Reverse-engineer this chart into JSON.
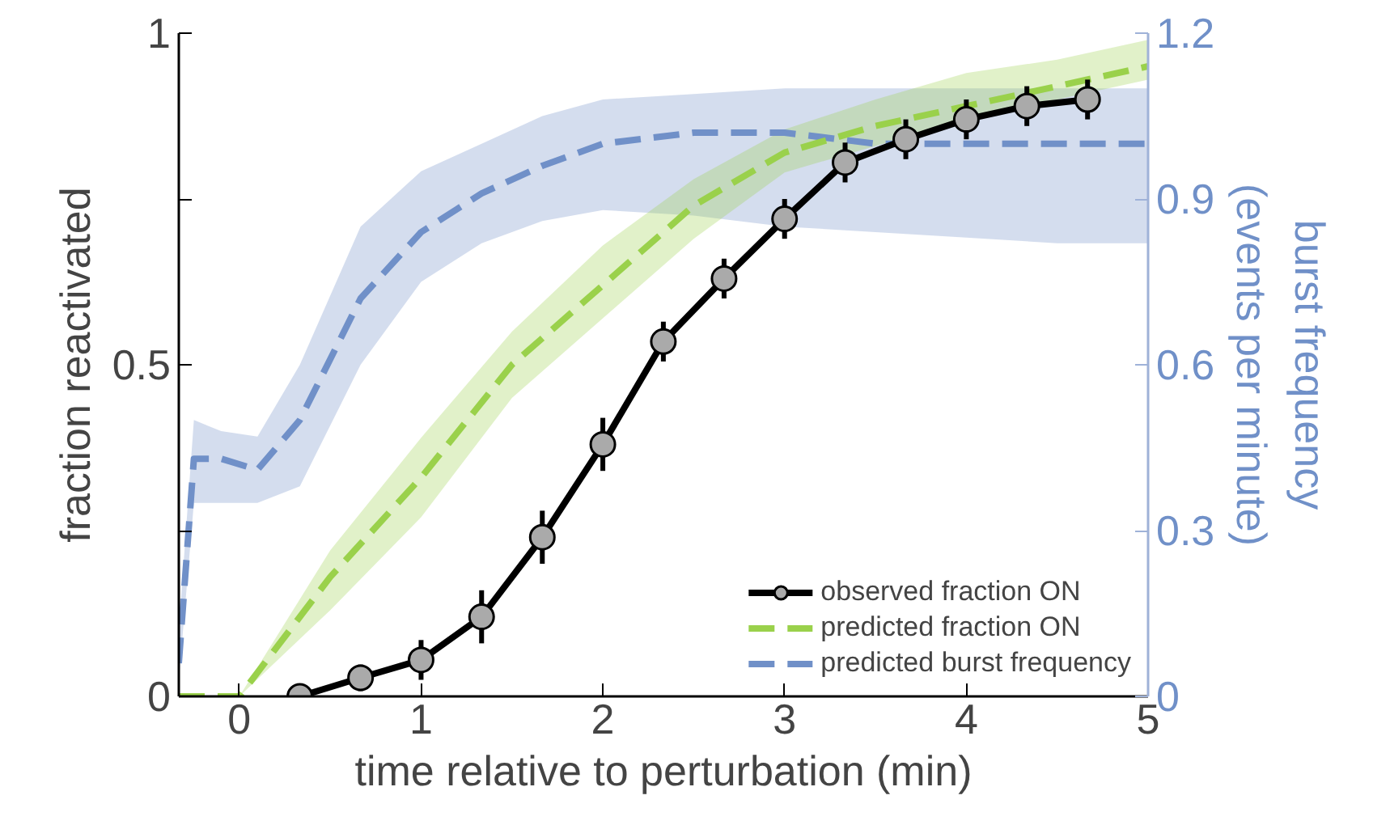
{
  "chart_data": {
    "type": "line",
    "xlabel": "time relative to perturbation (min)",
    "ylabel": "fraction reactivated",
    "y2label": "burst frequency\n(events per minute)",
    "xlim": [
      -0.333,
      5
    ],
    "xticks": [
      0,
      1,
      2,
      3,
      4,
      5
    ],
    "ylim": [
      0,
      1
    ],
    "yticks": [
      0,
      {
        "value": 0.25,
        "label": null
      },
      0.5,
      {
        "value": 0.75,
        "label": null
      },
      1
    ],
    "y2lim": [
      0,
      1.2
    ],
    "y2ticks": [
      0,
      0.3,
      0.6,
      0.9,
      1.2
    ],
    "legend": "bottom right",
    "grid": false,
    "series": [
      {
        "name": "predicted burst frequency",
        "color": "#7090c8",
        "axis": "y2",
        "line_style": "dashed",
        "marker": "none",
        "x": [
          -0.333,
          -0.25,
          -0.1,
          0.1,
          0.333,
          0.667,
          1,
          1.333,
          1.667,
          2,
          2.5,
          3,
          3.5,
          4,
          4.5,
          5
        ],
        "values": [
          0.06,
          0.43,
          0.43,
          0.41,
          0.5,
          0.72,
          0.84,
          0.91,
          0.96,
          1.0,
          1.02,
          1.02,
          1.0,
          1.0,
          1.0,
          1.0
        ],
        "lower": [
          0.03,
          0.35,
          0.35,
          0.35,
          0.38,
          0.6,
          0.75,
          0.82,
          0.86,
          0.88,
          0.87,
          0.85,
          0.84,
          0.83,
          0.82,
          0.82
        ],
        "upper": [
          0.12,
          0.5,
          0.48,
          0.47,
          0.6,
          0.85,
          0.95,
          1.0,
          1.05,
          1.08,
          1.09,
          1.1,
          1.1,
          1.1,
          1.1,
          1.1
        ]
      },
      {
        "name": "predicted fraction ON",
        "color": "#9ad14b",
        "line_style": "dashed",
        "marker": "none",
        "x": [
          -0.333,
          0,
          0.5,
          1,
          1.5,
          2,
          2.5,
          3,
          3.5,
          4,
          4.5,
          5
        ],
        "values": [
          0,
          0,
          0.18,
          0.33,
          0.5,
          0.62,
          0.74,
          0.82,
          0.86,
          0.89,
          0.92,
          0.95
        ],
        "lower": [
          0,
          0,
          0.13,
          0.27,
          0.45,
          0.57,
          0.69,
          0.79,
          0.83,
          0.87,
          0.9,
          0.93
        ],
        "upper": [
          0,
          0,
          0.22,
          0.39,
          0.55,
          0.68,
          0.78,
          0.855,
          0.9,
          0.94,
          0.96,
          0.99
        ]
      },
      {
        "name": "observed fraction ON",
        "color": "#000000",
        "line_style": "solid",
        "marker": "circle",
        "x": [
          0.333,
          0.667,
          1,
          1.333,
          1.667,
          2,
          2.333,
          2.667,
          3,
          3.333,
          3.667,
          4,
          4.333,
          4.667
        ],
        "values": [
          0,
          0.028,
          0.055,
          0.12,
          0.24,
          0.38,
          0.535,
          0.63,
          0.72,
          0.805,
          0.84,
          0.87,
          0.89,
          0.9
        ],
        "errors": [
          0.01,
          0.02,
          0.03,
          0.04,
          0.04,
          0.04,
          0.03,
          0.03,
          0.03,
          0.03,
          0.03,
          0.03,
          0.03,
          0.03
        ]
      }
    ]
  }
}
